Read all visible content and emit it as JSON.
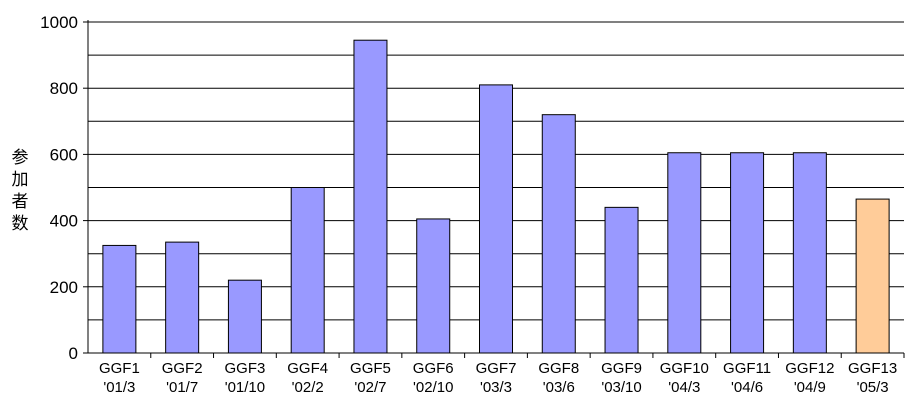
{
  "chart_data": {
    "type": "bar",
    "categories": [
      [
        "GGF1",
        "'01/3"
      ],
      [
        "GGF2",
        "'01/7"
      ],
      [
        "GGF3",
        "'01/10"
      ],
      [
        "GGF4",
        "'02/2"
      ],
      [
        "GGF5",
        "'02/7"
      ],
      [
        "GGF6",
        "'02/10"
      ],
      [
        "GGF7",
        "'03/3"
      ],
      [
        "GGF8",
        "'03/6"
      ],
      [
        "GGF9",
        "'03/10"
      ],
      [
        "GGF10",
        "'04/3"
      ],
      [
        "GGF11",
        "'04/6"
      ],
      [
        "GGF12",
        "'04/9"
      ],
      [
        "GGF13",
        "'05/3"
      ]
    ],
    "values": [
      325,
      335,
      220,
      500,
      945,
      405,
      810,
      720,
      440,
      605,
      605,
      605,
      465
    ],
    "ylabel": "参加者数",
    "ylim": [
      0,
      1000
    ],
    "yticks": [
      0,
      200,
      400,
      600,
      800,
      1000
    ],
    "gridlines": [
      100,
      200,
      300,
      400,
      500,
      600,
      700,
      800,
      900,
      1000
    ],
    "grid": true,
    "colors": {
      "bar": "#9999ff",
      "highlight": "#ffcc99",
      "bar_stroke": "#000000"
    },
    "highlight_index": 12
  }
}
